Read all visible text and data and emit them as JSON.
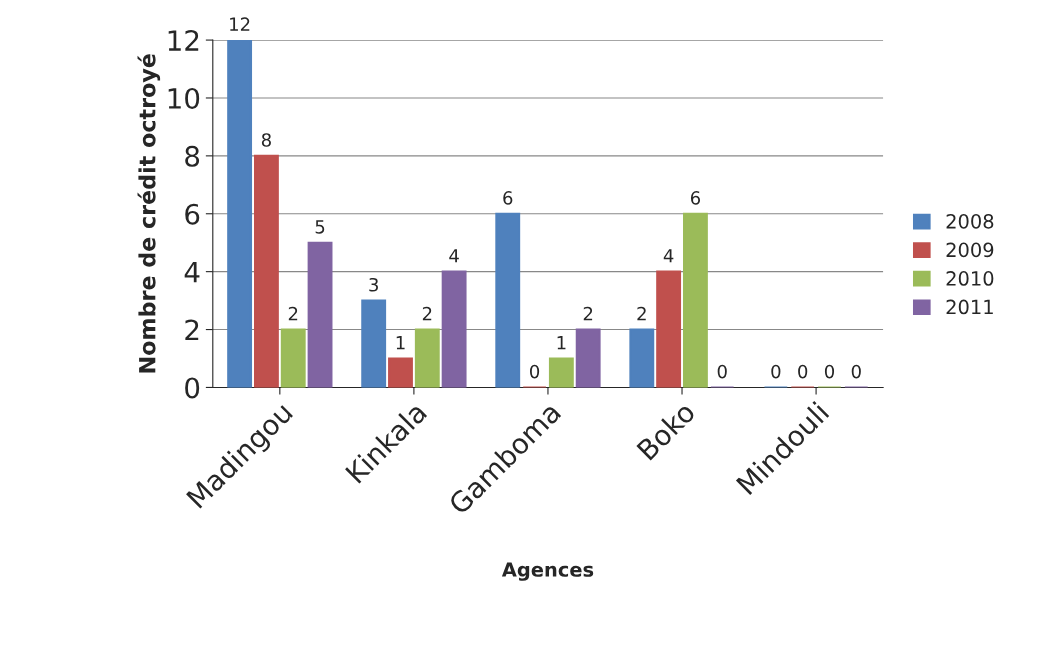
{
  "chart_data": {
    "type": "bar",
    "xlabel": "Agences",
    "ylabel": "Nombre de crédit octroyé",
    "categories": [
      "Madingou",
      "Kinkala",
      "Gamboma",
      "Boko",
      "Mindouli"
    ],
    "series": [
      {
        "name": "2008",
        "color": "#4f81bd",
        "values": [
          12,
          3,
          6,
          2,
          0
        ]
      },
      {
        "name": "2009",
        "color": "#c0504d",
        "values": [
          8,
          1,
          0,
          4,
          0
        ]
      },
      {
        "name": "2010",
        "color": "#9bbb59",
        "values": [
          2,
          2,
          1,
          6,
          0
        ]
      },
      {
        "name": "2011",
        "color": "#8064a2",
        "values": [
          5,
          4,
          2,
          0,
          0
        ]
      }
    ],
    "ylim": [
      0,
      12
    ],
    "yticks": [
      0,
      2,
      4,
      6,
      8,
      10,
      12
    ],
    "grid": "y",
    "legend": "right",
    "data_labels": true
  }
}
